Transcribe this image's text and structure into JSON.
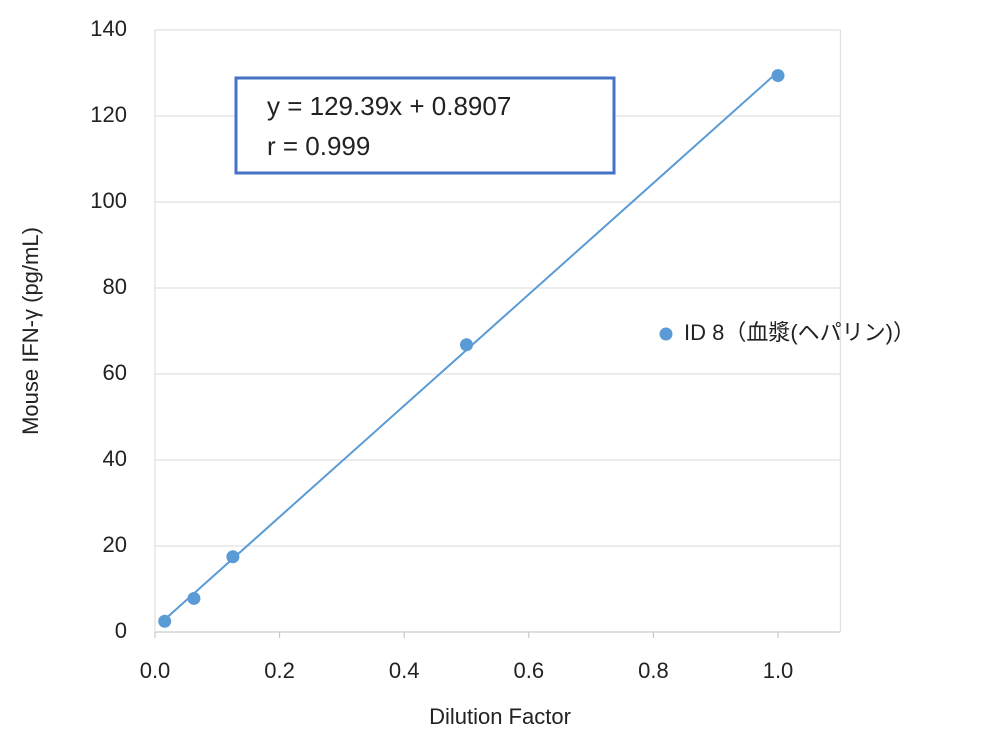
{
  "chart_data": {
    "type": "scatter",
    "x_label": "Dilution Factor",
    "y_label": "Mouse IFN-γ (pg/mL)",
    "x": [
      0.0156,
      0.0625,
      0.125,
      0.5,
      1.0
    ],
    "series": [
      {
        "name": "ID 8（血漿(ヘパリン)）",
        "color": "#5b9bd5",
        "values": [
          2.5,
          7.8,
          17.5,
          66.8,
          129.4
        ]
      }
    ],
    "trendline": {
      "slope": 129.39,
      "intercept": 0.8907,
      "color": "#5b9bd5"
    },
    "annotation": {
      "lines": [
        "y = 129.39x + 0.8907",
        "r = 0.999"
      ],
      "border_color": "#4472c4"
    },
    "xlim": [
      0,
      1.1
    ],
    "xticks": [
      {
        "value": 0,
        "label": "0.0"
      },
      0.2,
      0.4,
      0.6,
      0.8,
      {
        "value": 1,
        "label": "1.0"
      }
    ],
    "ylim": [
      0,
      140
    ],
    "yticks": [
      0,
      20,
      40,
      60,
      80,
      100,
      120,
      140
    ],
    "grid": true,
    "legend": "right"
  }
}
